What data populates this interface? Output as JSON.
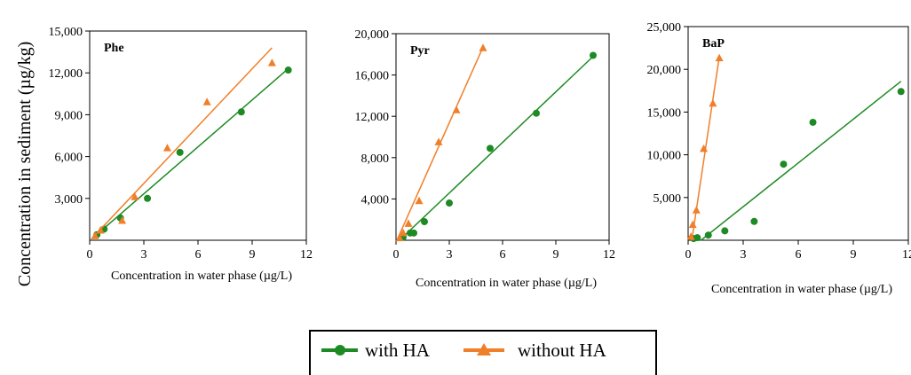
{
  "ylabel": "Concentration  in sediment (µg/kg)",
  "legend": {
    "with": {
      "label": "with HA",
      "color": "#1e8a24",
      "marker": "circle"
    },
    "without": {
      "label": "without HA",
      "color": "#f07f2a",
      "marker": "triangle"
    }
  },
  "chart_data": [
    {
      "type": "scatter",
      "title": "Phe",
      "xlabel": "Concentration in water phase (µg/L)",
      "xlim": [
        0,
        12
      ],
      "ylim": [
        0,
        15000
      ],
      "xticks": [
        "0",
        "3",
        "6",
        "9",
        "12"
      ],
      "yticks": [
        "3,000",
        "6,000",
        "9,000",
        "12,000",
        "15,000"
      ],
      "series": [
        {
          "name": "with HA",
          "points": [
            [
              0.4,
              400
            ],
            [
              0.8,
              800
            ],
            [
              1.7,
              1600
            ],
            [
              3.2,
              3000
            ],
            [
              5.0,
              6300
            ],
            [
              8.4,
              9200
            ],
            [
              11.0,
              12200
            ]
          ],
          "fit": [
            [
              0.1,
              80
            ],
            [
              11.0,
              12300
            ]
          ]
        },
        {
          "name": "without HA",
          "points": [
            [
              0.3,
              300
            ],
            [
              0.6,
              700
            ],
            [
              1.8,
              1400
            ],
            [
              2.5,
              3100
            ],
            [
              4.3,
              6600
            ],
            [
              6.5,
              9900
            ],
            [
              10.1,
              12700
            ]
          ],
          "fit": [
            [
              0.1,
              100
            ],
            [
              10.1,
              13800
            ]
          ]
        }
      ]
    },
    {
      "type": "scatter",
      "title": "Pyr",
      "xlabel": "Concentration in water phase (µg/L)",
      "xlim": [
        0,
        12
      ],
      "ylim": [
        0,
        20000
      ],
      "xticks": [
        "0",
        "3",
        "6",
        "9",
        "12"
      ],
      "yticks": [
        "4,000",
        "8,000",
        "12,000",
        "16,000",
        "20,000"
      ],
      "series": [
        {
          "name": "with HA",
          "points": [
            [
              0.4,
              300
            ],
            [
              0.8,
              700
            ],
            [
              1.0,
              700
            ],
            [
              1.6,
              1800
            ],
            [
              3.0,
              3600
            ],
            [
              5.3,
              8900
            ],
            [
              7.9,
              12300
            ],
            [
              11.1,
              17900
            ]
          ],
          "fit": [
            [
              0.2,
              0
            ],
            [
              11.1,
              17800
            ]
          ]
        },
        {
          "name": "without HA",
          "points": [
            [
              0.2,
              200
            ],
            [
              0.4,
              700
            ],
            [
              0.7,
              1600
            ],
            [
              1.3,
              3800
            ],
            [
              2.4,
              9500
            ],
            [
              3.4,
              12600
            ],
            [
              4.9,
              18600
            ]
          ],
          "fit": [
            [
              0.05,
              0
            ],
            [
              4.9,
              18700
            ]
          ]
        }
      ]
    },
    {
      "type": "scatter",
      "title": "BaP",
      "xlabel": "Concentration in water phase (µg/L)",
      "xlim": [
        0,
        12
      ],
      "ylim": [
        0,
        25000
      ],
      "xticks": [
        "0",
        "3",
        "6",
        "9",
        "12"
      ],
      "yticks": [
        "5,000",
        "10,000",
        "15,000",
        "20,000",
        "25,000"
      ],
      "series": [
        {
          "name": "with HA",
          "points": [
            [
              0.3,
              200
            ],
            [
              0.5,
              300
            ],
            [
              1.1,
              600
            ],
            [
              2.0,
              1100
            ],
            [
              3.6,
              2200
            ],
            [
              5.2,
              8900
            ],
            [
              6.8,
              13800
            ],
            [
              11.6,
              17400
            ]
          ],
          "fit": [
            [
              0.7,
              0
            ],
            [
              11.6,
              18600
            ]
          ]
        },
        {
          "name": "without HA",
          "points": [
            [
              0.15,
              400
            ],
            [
              0.25,
              1800
            ],
            [
              0.45,
              3500
            ],
            [
              0.85,
              10700
            ],
            [
              1.35,
              16000
            ],
            [
              1.7,
              21300
            ]
          ],
          "fit": [
            [
              0.2,
              0
            ],
            [
              1.7,
              21500
            ]
          ]
        }
      ]
    }
  ]
}
